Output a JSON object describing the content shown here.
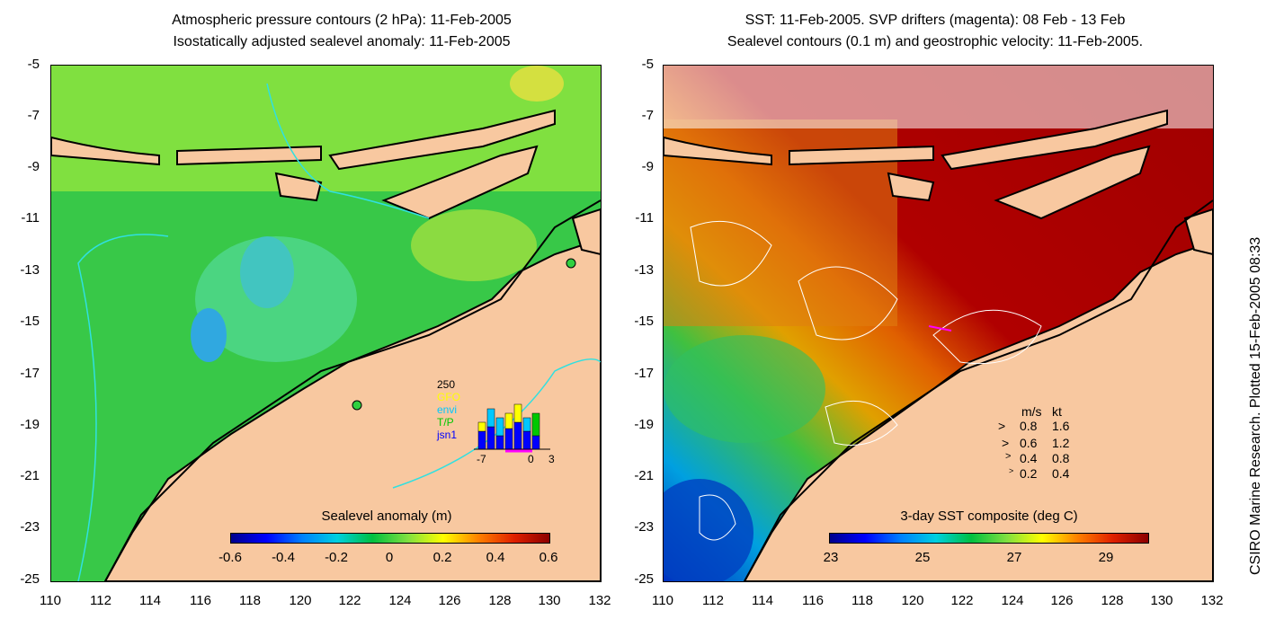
{
  "left_panel": {
    "title_line1": "Atmospheric pressure contours (2 hPa): 11-Feb-2005",
    "title_line2": "Isostatically adjusted sealevel anomaly: 11-Feb-2005",
    "colorbar_label": "Sealevel anomaly (m)",
    "colorbar_ticks": [
      "-0.6",
      "-0.4",
      "-0.2",
      "0",
      "0.2",
      "0.4",
      "0.6"
    ],
    "inset": {
      "max_label": "250",
      "satellites": [
        {
          "name": "GFO",
          "color": "#ffff00"
        },
        {
          "name": "envi",
          "color": "#00c8ff"
        },
        {
          "name": "T/P",
          "color": "#00c800"
        },
        {
          "name": "jsn1",
          "color": "#0000ff"
        }
      ],
      "x_ticks": [
        "-7",
        "0",
        "3"
      ]
    }
  },
  "right_panel": {
    "title_line1": "SST: 11-Feb-2005. SVP drifters (magenta): 08 Feb - 13 Feb",
    "title_line2": "Sealevel contours (0.1 m) and geostrophic velocity: 11-Feb-2005.",
    "colorbar_label": "3-day SST composite (deg C)",
    "colorbar_ticks": [
      "23",
      "25",
      "27",
      "29"
    ],
    "velocity_key": {
      "header_ms": "m/s",
      "header_kt": "kt",
      "rows": [
        {
          "ms": "0.8",
          "kt": "1.6"
        },
        {
          "ms": "0.6",
          "kt": "1.2"
        },
        {
          "ms": "0.4",
          "kt": "0.8"
        },
        {
          "ms": "0.2",
          "kt": "0.4"
        }
      ]
    }
  },
  "y_ticks": [
    "-5",
    "-7",
    "-9",
    "-11",
    "-13",
    "-15",
    "-17",
    "-19",
    "-21",
    "-23",
    "-25"
  ],
  "x_ticks": [
    "110",
    "112",
    "114",
    "116",
    "118",
    "120",
    "122",
    "124",
    "126",
    "128",
    "130",
    "132"
  ],
  "side_text": "CSIRO Marine Research. Plotted 15-Feb-2005 08:33",
  "colors": {
    "land": "#f8c8a0",
    "ocean_low": "#0020a0",
    "ocean_mid": "#00c040",
    "ocean_high": "#a00000"
  }
}
